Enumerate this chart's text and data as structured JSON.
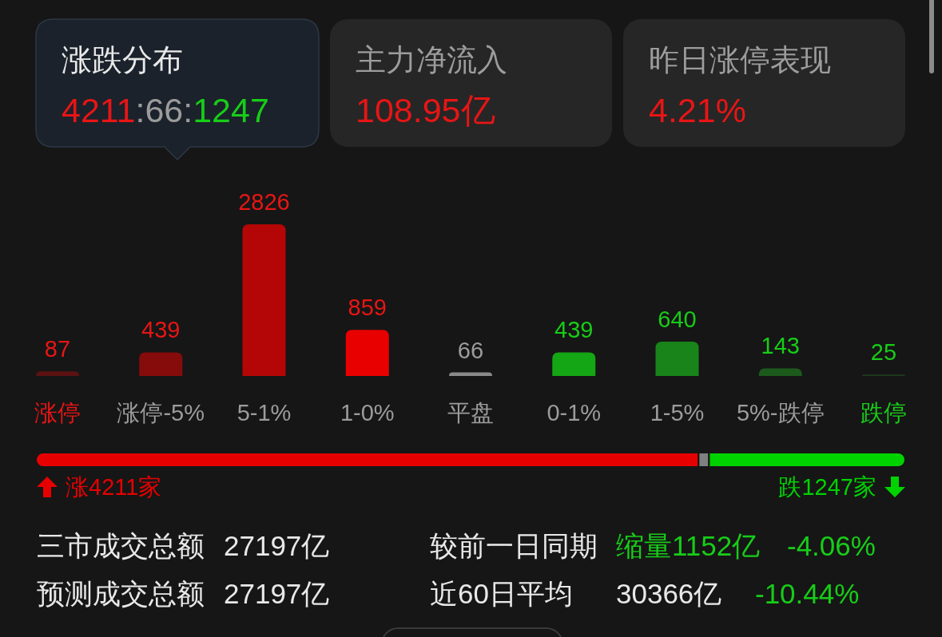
{
  "chart_data": [
    {
      "type": "other",
      "annotations": [
        "涨跌分布",
        "4211",
        ":66:",
        "1247",
        "主力净流入",
        "108.95亿",
        "昨日涨停表现",
        "4.21%"
      ]
    },
    {
      "type": "bar",
      "categories": [
        "涨停",
        "涨停-5%",
        "5-1%",
        "1-0%",
        "平盘",
        "0-1%",
        "1-5%",
        "5%-跌停",
        "跌停"
      ],
      "values": [
        87,
        439,
        2826,
        859,
        66,
        439,
        640,
        143,
        25
      ],
      "colors": [
        "#5c1212",
        "#860c0c",
        "#b40606",
        "#e80000",
        "#8a8a8a",
        "#14a614",
        "#198419",
        "#1b5a1b",
        "#1c3d1c"
      ],
      "data_labels": true
    },
    {
      "type": "bar",
      "orientation": "horizontal",
      "stacked": true,
      "categories": [
        null
      ],
      "series": [
        {
          "color": "#e60000",
          "values": [
            4211
          ],
          "value_labels": [
            "涨4211家"
          ]
        },
        {
          "color": "#808080",
          "values": [
            66
          ]
        },
        {
          "color": "#00d200",
          "values": [
            1247
          ],
          "value_labels": [
            "跌1247家"
          ]
        }
      ]
    },
    {
      "type": "other",
      "annotations": [
        "三市成交总额",
        "27197亿",
        "较前一日同期",
        "缩量1152亿",
        "-4.06%",
        "预测成交总额",
        "27197亿",
        "近60日平均",
        "30366亿",
        "-10.44%"
      ]
    }
  ]
}
